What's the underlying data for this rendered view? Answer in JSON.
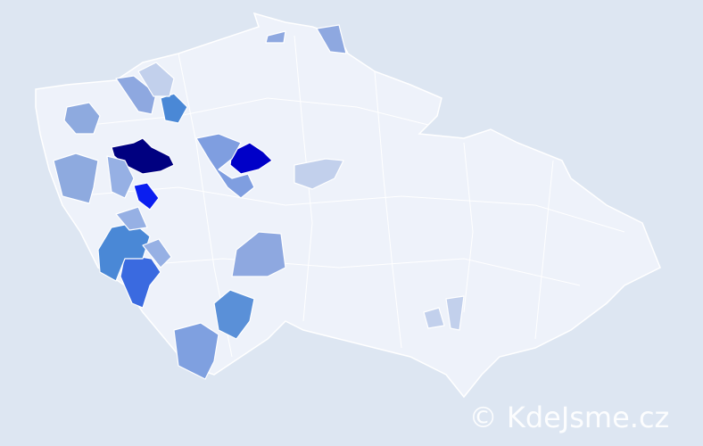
{
  "watermark": "© KdeJsme.cz"
}
